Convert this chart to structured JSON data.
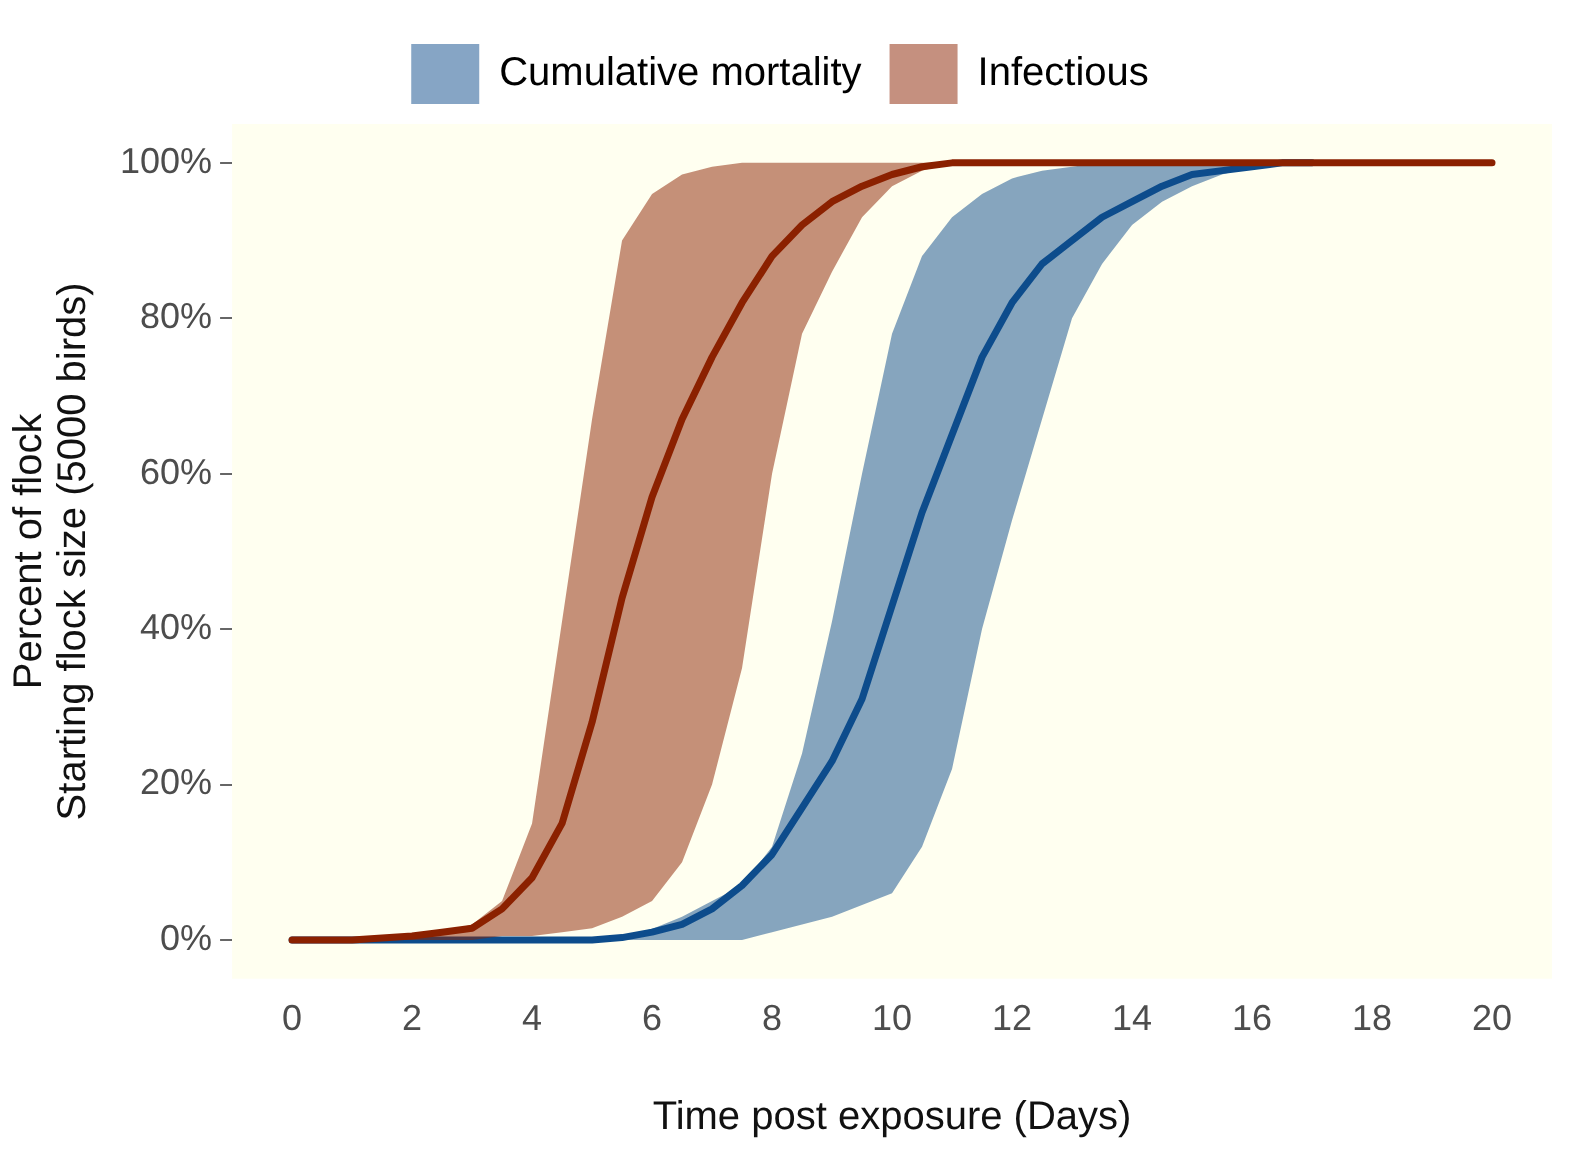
{
  "chart_data": {
    "type": "line",
    "xlabel": "Time post exposure (Days)",
    "ylabel": "Percent of flock\nStarting flock size (5000 birds)",
    "xlim": [
      -1,
      21
    ],
    "xticks": [
      0,
      2,
      4,
      6,
      8,
      10,
      12,
      14,
      16,
      18,
      20
    ],
    "ylim": [
      -5,
      105
    ],
    "yticks": [
      {
        "value": 0,
        "label": "0%"
      },
      {
        "value": 20,
        "label": "20%"
      },
      {
        "value": 40,
        "label": "40%"
      },
      {
        "value": 60,
        "label": "60%"
      },
      {
        "value": 80,
        "label": "80%"
      },
      {
        "value": 100,
        "label": "100%"
      }
    ],
    "grid": false,
    "legend": "top",
    "marker": "none",
    "line_style": "solid",
    "series": [
      {
        "name": "Cumulative mortality",
        "color": "#0d4c8c",
        "x": [
          0,
          1,
          2,
          3,
          4,
          5,
          5.5,
          6,
          6.5,
          7,
          7.5,
          8,
          8.5,
          9,
          9.5,
          10,
          10.5,
          11,
          11.5,
          12,
          12.5,
          13,
          13.5,
          14,
          14.5,
          15,
          15.5,
          16,
          16.5,
          17
        ],
        "values": [
          0,
          0,
          0,
          0,
          0,
          0,
          0.3,
          1,
          2,
          4,
          7,
          11,
          17,
          23,
          31,
          43,
          55,
          65,
          75,
          82,
          87,
          90,
          93,
          95,
          97,
          98.5,
          99,
          99.5,
          100,
          100
        ],
        "lower": [
          0,
          0,
          0,
          0,
          0,
          0,
          0,
          0,
          0,
          0,
          0,
          1,
          2,
          3,
          4.5,
          6,
          12,
          22,
          40,
          54,
          67,
          80,
          87,
          92,
          95,
          97,
          98.5,
          99.5,
          100,
          100
        ],
        "upper": [
          0,
          0,
          0,
          0,
          0,
          0,
          0.5,
          1.4,
          3,
          5,
          7,
          12,
          24,
          41,
          60,
          78,
          88,
          93,
          96,
          98,
          99,
          99.5,
          100,
          100,
          100,
          100,
          100,
          100,
          100,
          100
        ]
      },
      {
        "name": "Infectious",
        "color": "#8b2100",
        "x": [
          0,
          1,
          2,
          2.5,
          3,
          3.5,
          4,
          4.5,
          5,
          5.5,
          6,
          6.5,
          7,
          7.5,
          8,
          8.5,
          9,
          9.5,
          10,
          10.5,
          11,
          12,
          14,
          16,
          18,
          20
        ],
        "values": [
          0,
          0,
          0.5,
          1,
          1.5,
          4,
          8,
          15,
          28,
          44,
          57,
          67,
          75,
          82,
          88,
          92,
          95,
          97,
          98.5,
          99.5,
          100,
          100,
          100,
          100,
          100,
          100
        ],
        "lower": [
          0,
          0,
          0,
          0,
          0,
          0.5,
          0.5,
          1,
          1.5,
          3,
          5,
          10,
          20,
          35,
          60,
          78,
          86,
          93,
          97,
          99,
          100,
          null,
          null,
          null,
          null,
          null
        ],
        "upper": [
          0,
          0,
          0.5,
          1,
          2,
          5,
          15,
          41,
          67,
          90,
          96,
          98.5,
          99.5,
          100,
          100,
          100,
          100,
          100,
          100,
          100,
          100,
          null,
          null,
          null,
          null,
          null
        ]
      }
    ]
  }
}
